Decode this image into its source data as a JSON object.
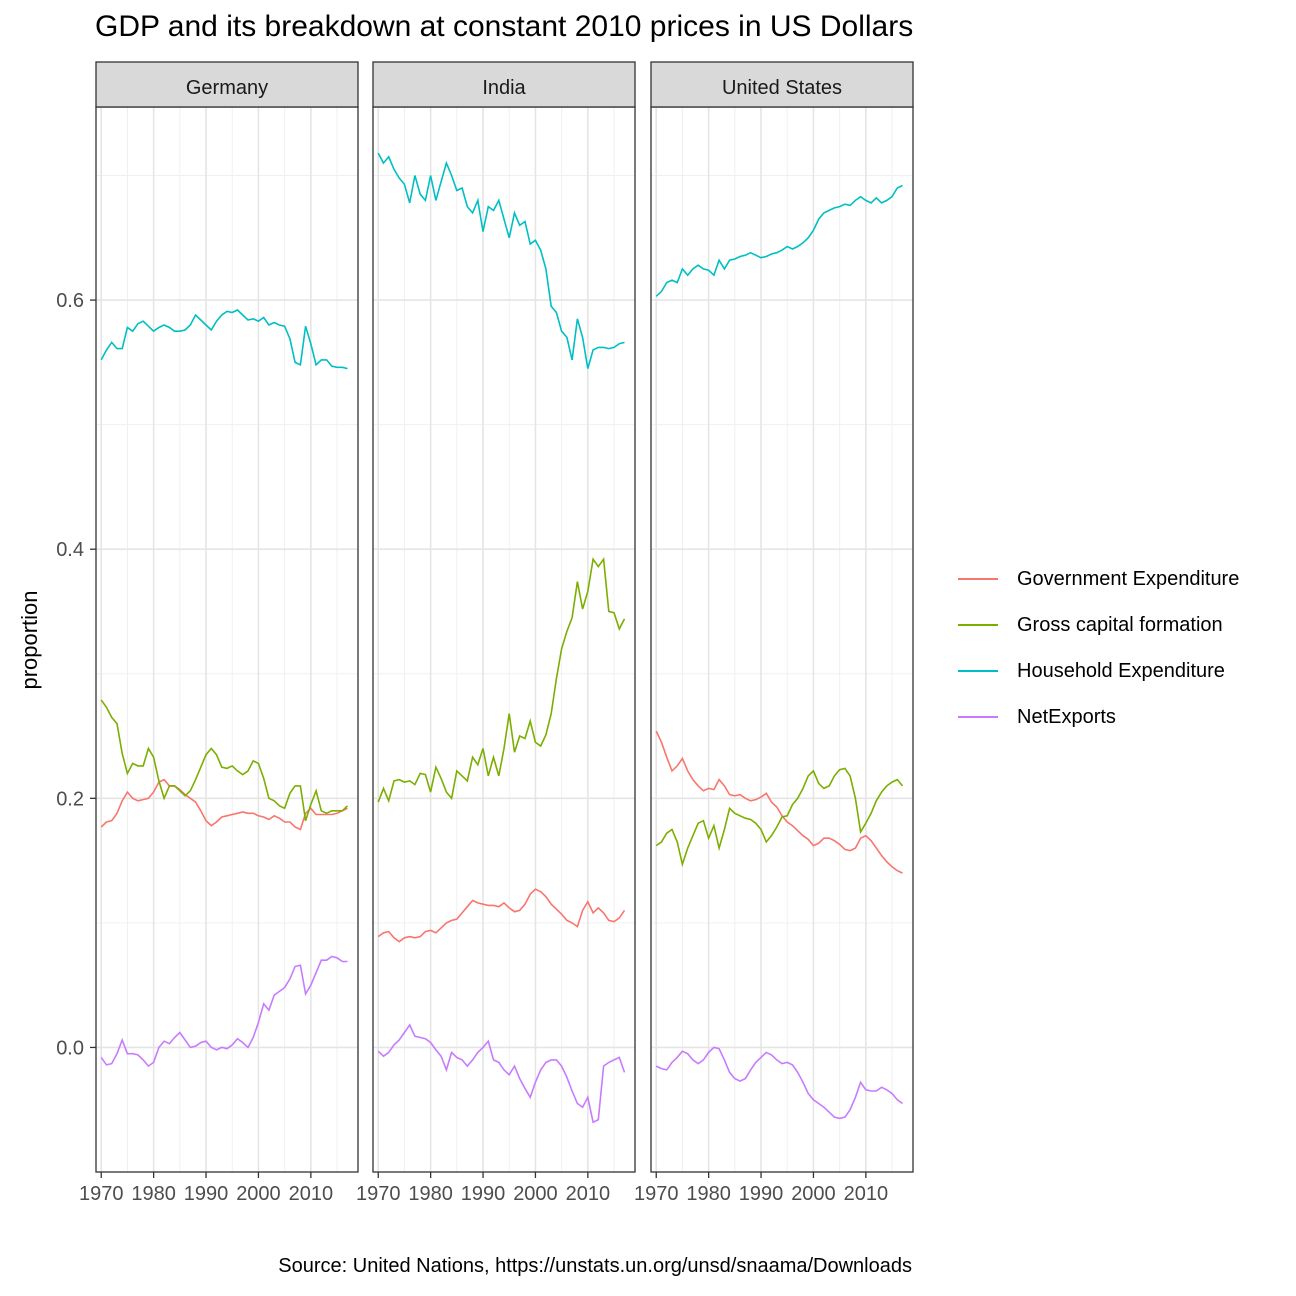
{
  "title": "GDP and its breakdown at constant 2010 prices in US Dollars",
  "caption": "Source: United Nations, https://unstats.un.org/unsd/snaama/Downloads",
  "chart_data": {
    "type": "line",
    "title": "GDP and its breakdown at constant 2010 prices in US Dollars",
    "xlabel": "",
    "ylabel": "proportion",
    "xlim": [
      1969,
      2019
    ],
    "ylim": [
      -0.1,
      0.755
    ],
    "x_ticks": [
      1970,
      1980,
      1990,
      2000,
      2010
    ],
    "y_ticks": [
      0.0,
      0.2,
      0.4,
      0.6
    ],
    "y_tick_labels": [
      "0.0",
      "0.2",
      "0.4",
      "0.6"
    ],
    "grid": true,
    "legend_position": "right",
    "facet_labels": [
      "Germany",
      "India",
      "United States"
    ],
    "legend": [
      {
        "name": "Government Expenditure",
        "color": "#F8766D"
      },
      {
        "name": "Gross capital formation",
        "color": "#7CAE00"
      },
      {
        "name": "Household Expenditure",
        "color": "#00BFC4"
      },
      {
        "name": "NetExports",
        "color": "#C77CFF"
      }
    ],
    "x": [
      1970,
      1971,
      1972,
      1973,
      1974,
      1975,
      1976,
      1977,
      1978,
      1979,
      1980,
      1981,
      1982,
      1983,
      1984,
      1985,
      1986,
      1987,
      1988,
      1989,
      1990,
      1991,
      1992,
      1993,
      1994,
      1995,
      1996,
      1997,
      1998,
      1999,
      2000,
      2001,
      2002,
      2003,
      2004,
      2005,
      2006,
      2007,
      2008,
      2009,
      2010,
      2011,
      2012,
      2013,
      2014,
      2015,
      2016,
      2017
    ],
    "facets": [
      {
        "name": "Germany",
        "series": [
          {
            "name": "Government Expenditure",
            "values": [
              0.177,
              0.181,
              0.182,
              0.188,
              0.198,
              0.205,
              0.2,
              0.198,
              0.199,
              0.2,
              0.205,
              0.213,
              0.215,
              0.21,
              0.21,
              0.207,
              0.203,
              0.2,
              0.197,
              0.19,
              0.182,
              0.178,
              0.181,
              0.185,
              0.186,
              0.187,
              0.188,
              0.189,
              0.188,
              0.188,
              0.186,
              0.185,
              0.183,
              0.186,
              0.184,
              0.181,
              0.181,
              0.177,
              0.175,
              0.188,
              0.192,
              0.187,
              0.187,
              0.187,
              0.187,
              0.188,
              0.19,
              0.192
            ]
          },
          {
            "name": "Gross capital formation",
            "values": [
              0.279,
              0.273,
              0.265,
              0.26,
              0.236,
              0.22,
              0.228,
              0.226,
              0.226,
              0.24,
              0.233,
              0.214,
              0.2,
              0.21,
              0.21,
              0.206,
              0.202,
              0.206,
              0.215,
              0.225,
              0.235,
              0.24,
              0.235,
              0.225,
              0.224,
              0.226,
              0.222,
              0.219,
              0.222,
              0.23,
              0.228,
              0.216,
              0.2,
              0.198,
              0.194,
              0.192,
              0.204,
              0.21,
              0.21,
              0.182,
              0.195,
              0.206,
              0.19,
              0.188,
              0.19,
              0.19,
              0.19,
              0.194
            ]
          },
          {
            "name": "Household Expenditure",
            "values": [
              0.552,
              0.56,
              0.566,
              0.561,
              0.561,
              0.578,
              0.575,
              0.581,
              0.583,
              0.579,
              0.575,
              0.578,
              0.58,
              0.578,
              0.575,
              0.575,
              0.576,
              0.58,
              0.588,
              0.584,
              0.58,
              0.576,
              0.583,
              0.588,
              0.591,
              0.59,
              0.592,
              0.588,
              0.584,
              0.585,
              0.583,
              0.586,
              0.58,
              0.582,
              0.58,
              0.579,
              0.569,
              0.55,
              0.548,
              0.579,
              0.565,
              0.548,
              0.552,
              0.552,
              0.547,
              0.546,
              0.546,
              0.545
            ]
          },
          {
            "name": "NetExports",
            "values": [
              -0.008,
              -0.014,
              -0.013,
              -0.005,
              0.006,
              -0.005,
              -0.005,
              -0.006,
              -0.01,
              -0.015,
              -0.012,
              0.0,
              0.005,
              0.003,
              0.008,
              0.012,
              0.006,
              0.0,
              0.001,
              0.004,
              0.005,
              0.0,
              -0.002,
              0.0,
              -0.001,
              0.002,
              0.007,
              0.004,
              0.0,
              0.008,
              0.02,
              0.035,
              0.03,
              0.042,
              0.045,
              0.048,
              0.055,
              0.065,
              0.066,
              0.043,
              0.05,
              0.06,
              0.07,
              0.07,
              0.073,
              0.072,
              0.069,
              0.069
            ]
          }
        ]
      },
      {
        "name": "India",
        "series": [
          {
            "name": "Government Expenditure",
            "values": [
              0.089,
              0.092,
              0.093,
              0.088,
              0.085,
              0.088,
              0.089,
              0.088,
              0.089,
              0.093,
              0.094,
              0.092,
              0.096,
              0.1,
              0.102,
              0.103,
              0.108,
              0.113,
              0.118,
              0.116,
              0.115,
              0.114,
              0.114,
              0.113,
              0.116,
              0.112,
              0.109,
              0.11,
              0.115,
              0.123,
              0.127,
              0.125,
              0.121,
              0.115,
              0.111,
              0.107,
              0.102,
              0.1,
              0.097,
              0.11,
              0.117,
              0.108,
              0.112,
              0.108,
              0.102,
              0.101,
              0.104,
              0.11
            ]
          },
          {
            "name": "Gross capital formation",
            "values": [
              0.197,
              0.208,
              0.198,
              0.214,
              0.215,
              0.213,
              0.214,
              0.211,
              0.22,
              0.219,
              0.205,
              0.225,
              0.216,
              0.205,
              0.2,
              0.222,
              0.218,
              0.214,
              0.233,
              0.227,
              0.24,
              0.218,
              0.233,
              0.218,
              0.24,
              0.268,
              0.237,
              0.25,
              0.248,
              0.262,
              0.245,
              0.242,
              0.251,
              0.268,
              0.296,
              0.32,
              0.334,
              0.345,
              0.374,
              0.352,
              0.366,
              0.392,
              0.386,
              0.392,
              0.35,
              0.349,
              0.336,
              0.344
            ]
          },
          {
            "name": "Household Expenditure",
            "values": [
              0.718,
              0.71,
              0.715,
              0.705,
              0.698,
              0.693,
              0.678,
              0.7,
              0.685,
              0.68,
              0.7,
              0.68,
              0.695,
              0.71,
              0.7,
              0.688,
              0.69,
              0.675,
              0.67,
              0.68,
              0.655,
              0.675,
              0.672,
              0.68,
              0.665,
              0.65,
              0.67,
              0.66,
              0.663,
              0.645,
              0.648,
              0.64,
              0.625,
              0.595,
              0.59,
              0.575,
              0.57,
              0.552,
              0.585,
              0.57,
              0.545,
              0.56,
              0.562,
              0.562,
              0.561,
              0.562,
              0.565,
              0.566
            ]
          },
          {
            "name": "NetExports",
            "values": [
              -0.003,
              -0.007,
              -0.004,
              0.002,
              0.006,
              0.012,
              0.018,
              0.009,
              0.008,
              0.007,
              0.004,
              -0.002,
              -0.007,
              -0.018,
              -0.004,
              -0.008,
              -0.01,
              -0.015,
              -0.01,
              -0.004,
              0.0,
              0.005,
              -0.01,
              -0.012,
              -0.018,
              -0.022,
              -0.015,
              -0.025,
              -0.033,
              -0.04,
              -0.028,
              -0.018,
              -0.012,
              -0.01,
              -0.01,
              -0.015,
              -0.024,
              -0.035,
              -0.045,
              -0.048,
              -0.04,
              -0.06,
              -0.058,
              -0.015,
              -0.012,
              -0.01,
              -0.008,
              -0.02
            ]
          }
        ]
      },
      {
        "name": "United States",
        "series": [
          {
            "name": "Government Expenditure",
            "values": [
              0.254,
              0.245,
              0.233,
              0.222,
              0.226,
              0.232,
              0.222,
              0.215,
              0.21,
              0.206,
              0.208,
              0.207,
              0.215,
              0.21,
              0.203,
              0.202,
              0.203,
              0.2,
              0.198,
              0.199,
              0.201,
              0.204,
              0.197,
              0.193,
              0.186,
              0.181,
              0.178,
              0.174,
              0.17,
              0.167,
              0.162,
              0.164,
              0.168,
              0.168,
              0.166,
              0.163,
              0.159,
              0.158,
              0.16,
              0.168,
              0.17,
              0.166,
              0.16,
              0.154,
              0.149,
              0.145,
              0.142,
              0.14
            ]
          },
          {
            "name": "Gross capital formation",
            "values": [
              0.162,
              0.165,
              0.172,
              0.175,
              0.165,
              0.147,
              0.16,
              0.17,
              0.18,
              0.182,
              0.168,
              0.178,
              0.16,
              0.175,
              0.192,
              0.188,
              0.186,
              0.184,
              0.183,
              0.18,
              0.175,
              0.165,
              0.17,
              0.177,
              0.185,
              0.186,
              0.195,
              0.2,
              0.208,
              0.218,
              0.222,
              0.212,
              0.208,
              0.21,
              0.218,
              0.223,
              0.224,
              0.218,
              0.2,
              0.173,
              0.18,
              0.188,
              0.198,
              0.205,
              0.21,
              0.213,
              0.215,
              0.21
            ]
          },
          {
            "name": "Household Expenditure",
            "values": [
              0.603,
              0.607,
              0.614,
              0.616,
              0.614,
              0.625,
              0.62,
              0.625,
              0.628,
              0.625,
              0.624,
              0.62,
              0.632,
              0.625,
              0.632,
              0.633,
              0.635,
              0.636,
              0.638,
              0.636,
              0.634,
              0.635,
              0.637,
              0.638,
              0.64,
              0.643,
              0.641,
              0.643,
              0.646,
              0.65,
              0.656,
              0.665,
              0.67,
              0.672,
              0.674,
              0.675,
              0.677,
              0.676,
              0.68,
              0.683,
              0.68,
              0.678,
              0.682,
              0.678,
              0.68,
              0.683,
              0.69,
              0.692
            ]
          },
          {
            "name": "NetExports",
            "values": [
              -0.015,
              -0.017,
              -0.018,
              -0.012,
              -0.008,
              -0.003,
              -0.005,
              -0.01,
              -0.013,
              -0.01,
              -0.004,
              0.0,
              -0.001,
              -0.01,
              -0.02,
              -0.025,
              -0.027,
              -0.025,
              -0.018,
              -0.012,
              -0.008,
              -0.004,
              -0.006,
              -0.01,
              -0.013,
              -0.012,
              -0.014,
              -0.02,
              -0.028,
              -0.037,
              -0.042,
              -0.045,
              -0.048,
              -0.052,
              -0.056,
              -0.057,
              -0.056,
              -0.05,
              -0.04,
              -0.028,
              -0.034,
              -0.035,
              -0.035,
              -0.032,
              -0.034,
              -0.037,
              -0.042,
              -0.045
            ]
          }
        ]
      }
    ]
  }
}
